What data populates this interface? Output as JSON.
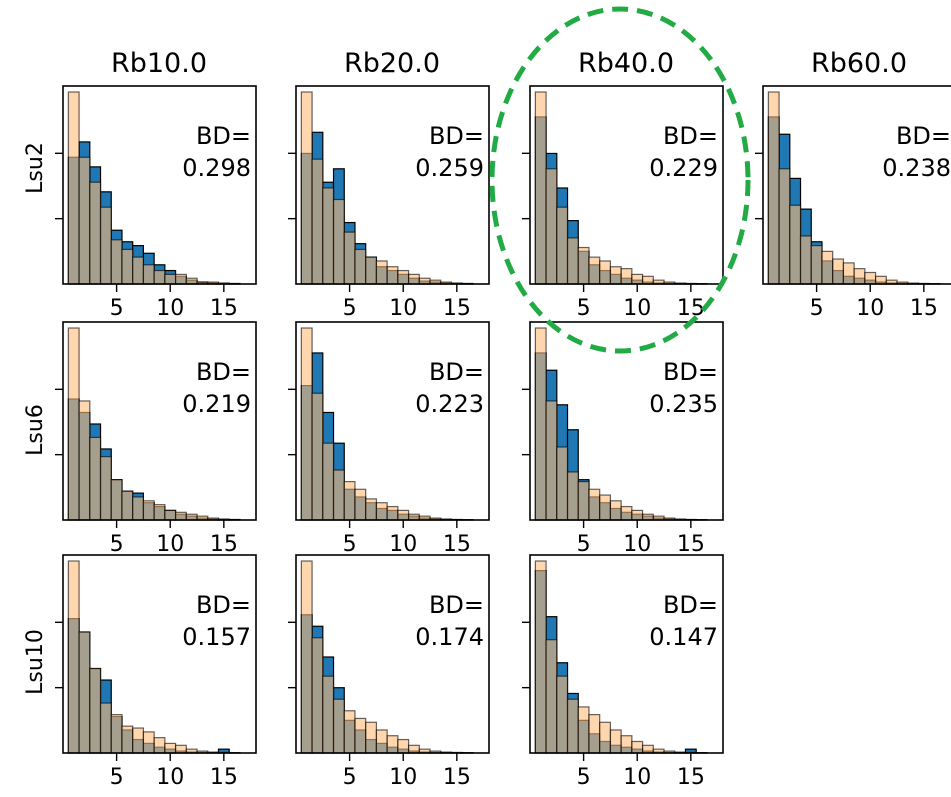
{
  "figure": {
    "col_titles": [
      "Rb10.0",
      "Rb20.0",
      "Rb40.0",
      "Rb60.0"
    ],
    "row_labels": [
      "Lsu2",
      "Lsu6",
      "Lsu10"
    ],
    "x_ticks": [
      5,
      10,
      15
    ],
    "highlight_column": "Rb40.0",
    "colors": {
      "series_a": "#1f77b4",
      "series_b": "#ffbb78",
      "highlight": "#22aa44"
    }
  },
  "chart_data": [
    {
      "type": "bar",
      "row": "Lsu2",
      "col": "Rb10.0",
      "annotation": "BD=\n0.298",
      "bins": [
        1,
        2,
        3,
        4,
        5,
        6,
        7,
        8,
        9,
        10,
        11,
        12,
        13,
        14,
        15,
        16
      ],
      "xlim": [
        0,
        18
      ],
      "ylim": [
        0,
        1
      ],
      "series": [
        {
          "values": [
            0.66,
            0.74,
            0.61,
            0.48,
            0.28,
            0.22,
            0.2,
            0.16,
            0.1,
            0.07,
            0.04,
            0.02,
            0.01,
            0.005,
            0.003,
            0.002
          ]
        },
        {
          "values": [
            1.0,
            0.66,
            0.53,
            0.4,
            0.23,
            0.18,
            0.14,
            0.1,
            0.07,
            0.05,
            0.05,
            0.03,
            0.01,
            0.01,
            0.005,
            0.003
          ]
        }
      ]
    },
    {
      "type": "bar",
      "row": "Lsu2",
      "col": "Rb20.0",
      "annotation": "BD=\n0.259",
      "bins": [
        1,
        2,
        3,
        4,
        5,
        6,
        7,
        8,
        9,
        10,
        11,
        12,
        13,
        14,
        15,
        16
      ],
      "xlim": [
        0,
        18
      ],
      "ylim": [
        0,
        1
      ],
      "series": [
        {
          "values": [
            0.68,
            0.79,
            0.53,
            0.6,
            0.32,
            0.21,
            0.14,
            0.09,
            0.07,
            0.05,
            0.03,
            0.015,
            0.01,
            0.005,
            0.003,
            0.002
          ]
        },
        {
          "values": [
            1.0,
            0.65,
            0.5,
            0.44,
            0.27,
            0.18,
            0.14,
            0.12,
            0.09,
            0.07,
            0.05,
            0.03,
            0.02,
            0.01,
            0.005,
            0.003
          ]
        }
      ]
    },
    {
      "type": "bar",
      "row": "Lsu2",
      "col": "Rb40.0",
      "annotation": "BD=\n0.229",
      "bins": [
        1,
        2,
        3,
        4,
        5,
        6,
        7,
        8,
        9,
        10,
        11,
        12,
        13,
        14,
        15,
        16
      ],
      "xlim": [
        0,
        18
      ],
      "ylim": [
        0,
        1
      ],
      "series": [
        {
          "values": [
            0.87,
            0.68,
            0.5,
            0.33,
            0.17,
            0.1,
            0.07,
            0.05,
            0.03,
            0.02,
            0.01,
            0.005,
            0.003,
            0.002,
            0.001,
            0.001
          ]
        },
        {
          "values": [
            1.0,
            0.6,
            0.4,
            0.24,
            0.19,
            0.14,
            0.12,
            0.09,
            0.08,
            0.05,
            0.04,
            0.02,
            0.01,
            0.005,
            0.003,
            0.002
          ]
        }
      ]
    },
    {
      "type": "bar",
      "row": "Lsu2",
      "col": "Rb60.0",
      "annotation": "BD=\n0.238",
      "bins": [
        1,
        2,
        3,
        4,
        5,
        6,
        7,
        8,
        9,
        10,
        11,
        12,
        13,
        14,
        15,
        16
      ],
      "xlim": [
        0,
        18
      ],
      "ylim": [
        0,
        1
      ],
      "series": [
        {
          "values": [
            0.87,
            0.78,
            0.55,
            0.39,
            0.22,
            0.12,
            0.07,
            0.04,
            0.03,
            0.02,
            0.01,
            0.005,
            0.003,
            0.002,
            0.001,
            0.001
          ]
        },
        {
          "values": [
            1.0,
            0.6,
            0.41,
            0.25,
            0.2,
            0.17,
            0.13,
            0.11,
            0.08,
            0.06,
            0.04,
            0.02,
            0.01,
            0.005,
            0.003,
            0.002
          ]
        }
      ]
    },
    {
      "type": "bar",
      "row": "Lsu6",
      "col": "Rb10.0",
      "annotation": "BD=\n0.219",
      "bins": [
        1,
        2,
        3,
        4,
        5,
        6,
        7,
        8,
        9,
        10,
        11,
        12,
        13,
        14,
        15,
        16
      ],
      "xlim": [
        0,
        18
      ],
      "ylim": [
        0,
        1
      ],
      "series": [
        {
          "values": [
            0.63,
            0.56,
            0.5,
            0.37,
            0.21,
            0.15,
            0.14,
            0.09,
            0.07,
            0.05,
            0.03,
            0.02,
            0.01,
            0.005,
            0.003,
            0.002
          ]
        },
        {
          "values": [
            1.0,
            0.62,
            0.43,
            0.33,
            0.21,
            0.15,
            0.12,
            0.1,
            0.08,
            0.05,
            0.04,
            0.03,
            0.02,
            0.01,
            0.005,
            0.003
          ]
        }
      ]
    },
    {
      "type": "bar",
      "row": "Lsu6",
      "col": "Rb20.0",
      "annotation": "BD=\n0.223",
      "bins": [
        1,
        2,
        3,
        4,
        5,
        6,
        7,
        8,
        9,
        10,
        11,
        12,
        13,
        14,
        15,
        16
      ],
      "xlim": [
        0,
        18
      ],
      "ylim": [
        0,
        1
      ],
      "series": [
        {
          "values": [
            0.7,
            0.87,
            0.56,
            0.4,
            0.16,
            0.12,
            0.09,
            0.06,
            0.05,
            0.03,
            0.02,
            0.01,
            0.005,
            0.003,
            0.002,
            0.001
          ]
        },
        {
          "values": [
            1.0,
            0.66,
            0.4,
            0.26,
            0.2,
            0.16,
            0.11,
            0.09,
            0.07,
            0.05,
            0.03,
            0.02,
            0.01,
            0.005,
            0.003,
            0.002
          ]
        }
      ]
    },
    {
      "type": "bar",
      "row": "Lsu6",
      "col": "Rb40.0",
      "annotation": "BD=\n0.235",
      "bins": [
        1,
        2,
        3,
        4,
        5,
        6,
        7,
        8,
        9,
        10,
        11,
        12,
        13,
        14,
        15,
        16
      ],
      "xlim": [
        0,
        18
      ],
      "ylim": [
        0,
        1
      ],
      "series": [
        {
          "values": [
            0.87,
            0.78,
            0.6,
            0.47,
            0.21,
            0.12,
            0.09,
            0.06,
            0.04,
            0.03,
            0.02,
            0.01,
            0.005,
            0.003,
            0.002,
            0.001
          ]
        },
        {
          "values": [
            1.0,
            0.62,
            0.38,
            0.25,
            0.2,
            0.16,
            0.13,
            0.1,
            0.07,
            0.05,
            0.03,
            0.02,
            0.01,
            0.005,
            0.003,
            0.002
          ]
        }
      ]
    },
    {
      "type": "bar",
      "row": "Lsu10",
      "col": "Rb10.0",
      "annotation": "BD=\n0.157",
      "bins": [
        1,
        2,
        3,
        4,
        5,
        6,
        7,
        8,
        9,
        10,
        11,
        12,
        13,
        14,
        15,
        16
      ],
      "xlim": [
        0,
        18
      ],
      "ylim": [
        0,
        1
      ],
      "series": [
        {
          "values": [
            0.7,
            0.63,
            0.44,
            0.38,
            0.19,
            0.12,
            0.07,
            0.05,
            0.03,
            0.02,
            0.01,
            0.005,
            0.003,
            0.002,
            0.02,
            0.001
          ]
        },
        {
          "values": [
            1.0,
            0.63,
            0.44,
            0.26,
            0.2,
            0.14,
            0.13,
            0.11,
            0.08,
            0.05,
            0.04,
            0.02,
            0.01,
            0.005,
            0.003,
            0.002
          ]
        }
      ]
    },
    {
      "type": "bar",
      "row": "Lsu10",
      "col": "Rb20.0",
      "annotation": "BD=\n0.174",
      "bins": [
        1,
        2,
        3,
        4,
        5,
        6,
        7,
        8,
        9,
        10,
        11,
        12,
        13,
        14,
        15,
        16
      ],
      "xlim": [
        0,
        18
      ],
      "ylim": [
        0,
        1
      ],
      "series": [
        {
          "values": [
            0.72,
            0.66,
            0.5,
            0.34,
            0.17,
            0.12,
            0.07,
            0.05,
            0.03,
            0.02,
            0.01,
            0.005,
            0.003,
            0.002,
            0.001,
            0.001
          ]
        },
        {
          "values": [
            1.0,
            0.6,
            0.4,
            0.28,
            0.22,
            0.18,
            0.16,
            0.12,
            0.09,
            0.07,
            0.04,
            0.02,
            0.01,
            0.005,
            0.003,
            0.002
          ]
        }
      ]
    },
    {
      "type": "bar",
      "row": "Lsu10",
      "col": "Rb40.0",
      "annotation": "BD=\n0.147",
      "bins": [
        1,
        2,
        3,
        4,
        5,
        6,
        7,
        8,
        9,
        10,
        11,
        12,
        13,
        14,
        15,
        16
      ],
      "xlim": [
        0,
        18
      ],
      "ylim": [
        0,
        1
      ],
      "series": [
        {
          "values": [
            0.95,
            0.71,
            0.47,
            0.31,
            0.17,
            0.1,
            0.06,
            0.04,
            0.03,
            0.02,
            0.01,
            0.005,
            0.003,
            0.002,
            0.02,
            0.001
          ]
        },
        {
          "values": [
            1.0,
            0.59,
            0.4,
            0.28,
            0.24,
            0.2,
            0.16,
            0.12,
            0.09,
            0.06,
            0.04,
            0.02,
            0.01,
            0.005,
            0.003,
            0.002
          ]
        }
      ]
    }
  ]
}
